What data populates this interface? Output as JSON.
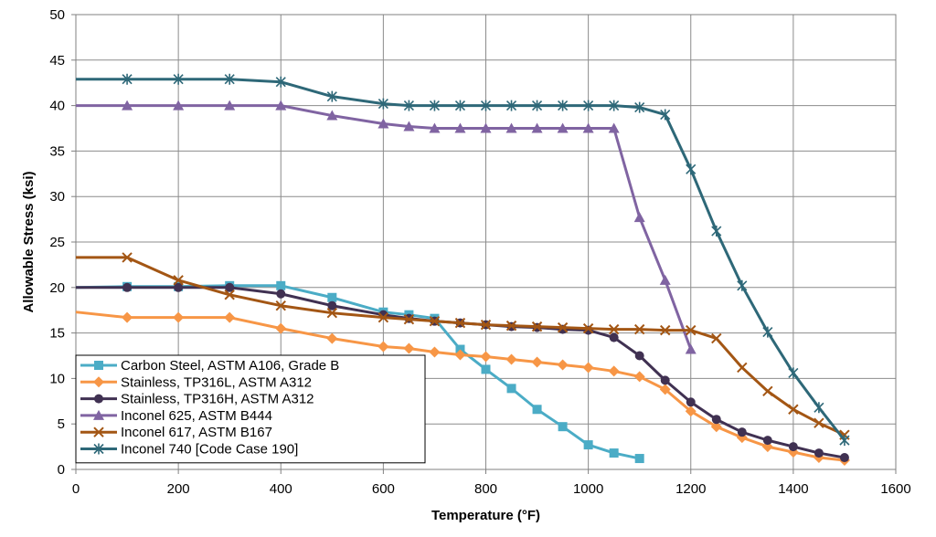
{
  "chart_data": {
    "type": "line",
    "xlabel": "Temperature (°F)",
    "ylabel": "Allowable Stress (ksi)",
    "xlim": [
      0,
      1600
    ],
    "ylim": [
      0,
      50
    ],
    "xticks": [
      0,
      200,
      400,
      600,
      800,
      1000,
      1200,
      1400,
      1600
    ],
    "yticks": [
      0,
      5,
      10,
      15,
      20,
      25,
      30,
      35,
      40,
      45,
      50
    ],
    "grid": true,
    "legend_position": "bottom-left",
    "series": [
      {
        "name": "Carbon Steel, ASTM A106, Grade B",
        "color": "#4bacc6",
        "marker": "square",
        "x": [
          0,
          100,
          200,
          300,
          400,
          500,
          600,
          650,
          700,
          750,
          800,
          850,
          900,
          950,
          1000,
          1050,
          1100
        ],
        "y": [
          20.0,
          20.1,
          20.1,
          20.2,
          20.2,
          18.9,
          17.3,
          17.0,
          16.6,
          13.2,
          11.0,
          8.9,
          6.6,
          4.7,
          2.7,
          1.8,
          1.2
        ]
      },
      {
        "name": "Stainless, TP316L, ASTM A312",
        "color": "#f79646",
        "marker": "diamond",
        "x": [
          0,
          100,
          200,
          300,
          400,
          500,
          600,
          650,
          700,
          750,
          800,
          850,
          900,
          950,
          1000,
          1050,
          1100,
          1150,
          1200,
          1250,
          1300,
          1350,
          1400,
          1450,
          1500
        ],
        "y": [
          17.3,
          16.7,
          16.7,
          16.7,
          15.5,
          14.4,
          13.5,
          13.3,
          12.9,
          12.6,
          12.4,
          12.1,
          11.8,
          11.5,
          11.2,
          10.8,
          10.2,
          8.8,
          6.4,
          4.7,
          3.5,
          2.5,
          1.9,
          1.3,
          1.0
        ]
      },
      {
        "name": "Stainless, TP316H, ASTM A312",
        "color": "#403152",
        "marker": "circle",
        "x": [
          0,
          100,
          200,
          300,
          400,
          500,
          600,
          650,
          700,
          750,
          800,
          850,
          900,
          950,
          1000,
          1050,
          1100,
          1150,
          1200,
          1250,
          1300,
          1350,
          1400,
          1450,
          1500
        ],
        "y": [
          20.0,
          20.0,
          20.0,
          20.0,
          19.3,
          18.0,
          17.0,
          16.6,
          16.3,
          16.1,
          15.9,
          15.7,
          15.6,
          15.4,
          15.3,
          14.5,
          12.5,
          9.8,
          7.4,
          5.5,
          4.1,
          3.2,
          2.5,
          1.8,
          1.3
        ]
      },
      {
        "name": "Inconel 625, ASTM B444",
        "color": "#8064a2",
        "marker": "triangle",
        "x": [
          0,
          100,
          200,
          300,
          400,
          500,
          600,
          650,
          700,
          750,
          800,
          850,
          900,
          950,
          1000,
          1050,
          1100,
          1150,
          1200
        ],
        "y": [
          40.0,
          40.0,
          40.0,
          40.0,
          40.0,
          38.9,
          38.0,
          37.7,
          37.5,
          37.5,
          37.5,
          37.5,
          37.5,
          37.5,
          37.5,
          37.5,
          27.7,
          20.8,
          13.2
        ]
      },
      {
        "name": "Inconel 617, ASTM B167",
        "color": "#a35614",
        "marker": "x",
        "x": [
          0,
          100,
          200,
          300,
          400,
          500,
          600,
          650,
          700,
          750,
          800,
          850,
          900,
          950,
          1000,
          1050,
          1100,
          1150,
          1200,
          1250,
          1300,
          1350,
          1400,
          1450,
          1500
        ],
        "y": [
          23.3,
          23.3,
          20.8,
          19.2,
          18.0,
          17.2,
          16.7,
          16.5,
          16.3,
          16.1,
          15.9,
          15.8,
          15.7,
          15.6,
          15.5,
          15.4,
          15.4,
          15.3,
          15.3,
          14.4,
          11.2,
          8.6,
          6.6,
          5.1,
          3.8
        ]
      },
      {
        "name": "Inconel 740 [Code Case 190]",
        "color": "#2e6878",
        "marker": "star",
        "x": [
          0,
          100,
          200,
          300,
          400,
          500,
          600,
          650,
          700,
          750,
          800,
          850,
          900,
          950,
          1000,
          1050,
          1100,
          1150,
          1200,
          1250,
          1300,
          1350,
          1400,
          1450,
          1500
        ],
        "y": [
          42.9,
          42.9,
          42.9,
          42.9,
          42.6,
          41.0,
          40.2,
          40.0,
          40.0,
          40.0,
          40.0,
          40.0,
          40.0,
          40.0,
          40.0,
          40.0,
          39.8,
          39.0,
          33.0,
          26.2,
          20.2,
          15.1,
          10.6,
          6.8,
          3.2
        ]
      }
    ]
  }
}
